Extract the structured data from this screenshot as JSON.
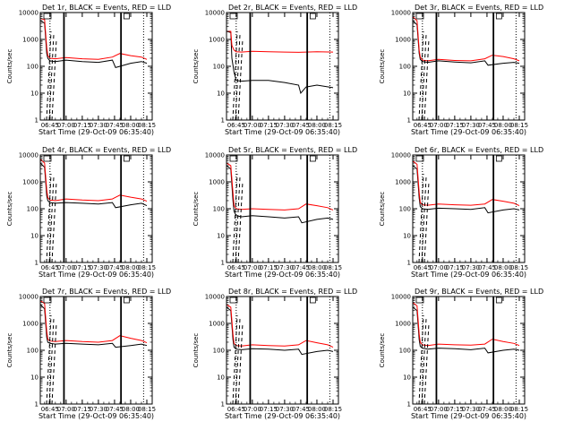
{
  "figure": {
    "xlabel": "Start Time (29-Oct-09 06:35:40)",
    "ylabel": "Counts/sec",
    "x_ticks": [
      "06:45",
      "07:00",
      "07:15",
      "07:30",
      "07:45",
      "08:00",
      "08:15"
    ],
    "y_ticks": [
      "1",
      "10",
      "100",
      "1000",
      "10000"
    ],
    "colors": {
      "events": "#000000",
      "lld": "#ff0000"
    }
  },
  "chart_data": [
    {
      "type": "line",
      "title": "Det 1r, BLACK = Events, RED = LLD",
      "y_scale": "log",
      "ylim": [
        1,
        10000
      ],
      "x_ticks": [
        "06:45",
        "07:00",
        "07:15",
        "07:30",
        "07:45",
        "08:00",
        "08:15"
      ],
      "series": [
        {
          "color": "#000000",
          "x": [
            "06:36",
            "06:40",
            "06:42",
            "06:43",
            "06:45",
            "06:50",
            "07:00",
            "07:15",
            "07:30",
            "07:43",
            "07:46",
            "08:00",
            "08:10",
            "08:15"
          ],
          "y": [
            5000,
            4000,
            300,
            200,
            160,
            150,
            170,
            150,
            140,
            170,
            90,
            130,
            150,
            130
          ]
        },
        {
          "color": "#ff0000",
          "x": [
            "06:36",
            "06:40",
            "06:42",
            "06:43",
            "06:45",
            "06:50",
            "07:00",
            "07:15",
            "07:30",
            "07:43",
            "07:50",
            "08:00",
            "08:10",
            "08:15"
          ],
          "y": [
            6000,
            5500,
            500,
            250,
            200,
            190,
            210,
            190,
            180,
            220,
            300,
            250,
            220,
            180
          ]
        }
      ]
    },
    {
      "type": "line",
      "title": "Det 2r, BLACK = Events, RED = LLD",
      "y_scale": "log",
      "ylim": [
        1,
        10000
      ],
      "x_ticks": [
        "06:45",
        "07:00",
        "07:15",
        "07:30",
        "07:45",
        "08:00",
        "08:15"
      ],
      "series": [
        {
          "color": "#000000",
          "x": [
            "06:36",
            "06:40",
            "06:41",
            "06:43",
            "06:45",
            "06:50",
            "07:00",
            "07:15",
            "07:30",
            "07:43",
            "07:45",
            "07:50",
            "08:00",
            "08:15"
          ],
          "y": [
            2000,
            1800,
            200,
            60,
            30,
            28,
            30,
            30,
            25,
            20,
            10,
            17,
            20,
            16
          ]
        },
        {
          "color": "#ff0000",
          "x": [
            "06:36",
            "06:40",
            "06:41",
            "06:43",
            "06:45",
            "06:50",
            "07:00",
            "07:15",
            "07:30",
            "07:43",
            "07:50",
            "08:00",
            "08:15"
          ],
          "y": [
            2000,
            2000,
            600,
            400,
            350,
            340,
            360,
            350,
            340,
            330,
            340,
            350,
            340
          ]
        }
      ]
    },
    {
      "type": "line",
      "title": "Det 3r, BLACK = Events, RED = LLD",
      "y_scale": "log",
      "ylim": [
        1,
        10000
      ],
      "x_ticks": [
        "06:45",
        "07:00",
        "07:15",
        "07:30",
        "07:45",
        "08:00",
        "08:15"
      ],
      "series": [
        {
          "color": "#000000",
          "x": [
            "06:36",
            "06:40",
            "06:42",
            "06:43",
            "06:45",
            "06:50",
            "07:00",
            "07:15",
            "07:30",
            "07:43",
            "07:46",
            "08:00",
            "08:10",
            "08:15"
          ],
          "y": [
            5000,
            3500,
            300,
            180,
            150,
            140,
            160,
            145,
            135,
            160,
            110,
            130,
            140,
            130
          ]
        },
        {
          "color": "#ff0000",
          "x": [
            "06:36",
            "06:40",
            "06:42",
            "06:43",
            "06:45",
            "06:50",
            "07:00",
            "07:15",
            "07:30",
            "07:43",
            "07:50",
            "08:00",
            "08:10",
            "08:15"
          ],
          "y": [
            7000,
            5000,
            400,
            220,
            170,
            160,
            180,
            165,
            160,
            190,
            260,
            230,
            190,
            160
          ]
        }
      ]
    },
    {
      "type": "line",
      "title": "Det 4r, BLACK = Events, RED = LLD",
      "y_scale": "log",
      "ylim": [
        1,
        10000
      ],
      "x_ticks": [
        "06:45",
        "07:00",
        "07:15",
        "07:30",
        "07:45",
        "08:00",
        "08:15"
      ],
      "series": [
        {
          "color": "#000000",
          "x": [
            "06:36",
            "06:40",
            "06:42",
            "06:43",
            "06:45",
            "06:50",
            "07:00",
            "07:15",
            "07:30",
            "07:43",
            "07:46",
            "08:00",
            "08:10",
            "08:15"
          ],
          "y": [
            5000,
            3500,
            300,
            200,
            170,
            160,
            170,
            160,
            150,
            170,
            110,
            140,
            160,
            130
          ]
        },
        {
          "color": "#ff0000",
          "x": [
            "06:36",
            "06:40",
            "06:42",
            "06:43",
            "06:45",
            "06:50",
            "07:00",
            "07:15",
            "07:30",
            "07:43",
            "07:50",
            "08:00",
            "08:10",
            "08:15"
          ],
          "y": [
            7000,
            5000,
            500,
            260,
            210,
            200,
            230,
            210,
            200,
            230,
            320,
            270,
            230,
            190
          ]
        }
      ]
    },
    {
      "type": "line",
      "title": "Det 5r, BLACK = Events, RED = LLD",
      "y_scale": "log",
      "ylim": [
        1,
        10000
      ],
      "x_ticks": [
        "06:45",
        "07:00",
        "07:15",
        "07:30",
        "07:45",
        "08:00",
        "08:15"
      ],
      "series": [
        {
          "color": "#000000",
          "x": [
            "06:36",
            "06:40",
            "06:42",
            "06:43",
            "06:45",
            "06:50",
            "07:00",
            "07:15",
            "07:30",
            "07:43",
            "07:46",
            "08:00",
            "08:10",
            "08:15"
          ],
          "y": [
            4000,
            3000,
            200,
            80,
            55,
            50,
            55,
            50,
            45,
            50,
            30,
            40,
            45,
            40
          ]
        },
        {
          "color": "#ff0000",
          "x": [
            "06:36",
            "06:40",
            "06:42",
            "06:43",
            "06:45",
            "06:50",
            "07:00",
            "07:15",
            "07:30",
            "07:43",
            "07:50",
            "08:00",
            "08:10",
            "08:15"
          ],
          "y": [
            5000,
            4000,
            400,
            130,
            100,
            95,
            100,
            95,
            90,
            100,
            150,
            130,
            110,
            90
          ]
        }
      ]
    },
    {
      "type": "line",
      "title": "Det 6r, BLACK = Events, RED = LLD",
      "y_scale": "log",
      "ylim": [
        1,
        10000
      ],
      "x_ticks": [
        "06:45",
        "07:00",
        "07:15",
        "07:30",
        "07:45",
        "08:00",
        "08:15"
      ],
      "series": [
        {
          "color": "#000000",
          "x": [
            "06:36",
            "06:40",
            "06:42",
            "06:43",
            "06:45",
            "06:50",
            "07:00",
            "07:15",
            "07:30",
            "07:43",
            "07:46",
            "08:00",
            "08:10",
            "08:15"
          ],
          "y": [
            4000,
            3000,
            250,
            120,
            100,
            95,
            105,
            100,
            95,
            110,
            70,
            90,
            100,
            90
          ]
        },
        {
          "color": "#ff0000",
          "x": [
            "06:36",
            "06:40",
            "06:42",
            "06:43",
            "06:45",
            "06:50",
            "07:00",
            "07:15",
            "07:30",
            "07:43",
            "07:50",
            "08:00",
            "08:10",
            "08:15"
          ],
          "y": [
            6000,
            4500,
            400,
            170,
            140,
            135,
            150,
            140,
            135,
            150,
            220,
            190,
            160,
            130
          ]
        }
      ]
    },
    {
      "type": "line",
      "title": "Det 7r, BLACK = Events, RED = LLD",
      "y_scale": "log",
      "ylim": [
        1,
        10000
      ],
      "x_ticks": [
        "06:45",
        "07:00",
        "07:15",
        "07:30",
        "07:45",
        "08:00",
        "08:15"
      ],
      "series": [
        {
          "color": "#000000",
          "x": [
            "06:36",
            "06:40",
            "06:42",
            "06:43",
            "06:45",
            "06:50",
            "07:00",
            "07:15",
            "07:30",
            "07:43",
            "07:46",
            "08:00",
            "08:10",
            "08:15"
          ],
          "y": [
            5000,
            3500,
            300,
            200,
            180,
            170,
            180,
            170,
            160,
            180,
            130,
            150,
            170,
            150
          ]
        },
        {
          "color": "#ff0000",
          "x": [
            "06:36",
            "06:40",
            "06:42",
            "06:43",
            "06:45",
            "06:50",
            "07:00",
            "07:15",
            "07:30",
            "07:43",
            "07:50",
            "08:00",
            "08:10",
            "08:15"
          ],
          "y": [
            7000,
            5500,
            500,
            260,
            220,
            210,
            230,
            210,
            200,
            230,
            350,
            280,
            230,
            190
          ]
        }
      ]
    },
    {
      "type": "line",
      "title": "Det 8r, BLACK = Events, RED = LLD",
      "y_scale": "log",
      "ylim": [
        1,
        10000
      ],
      "x_ticks": [
        "06:45",
        "07:00",
        "07:15",
        "07:30",
        "07:45",
        "08:00",
        "08:15"
      ],
      "series": [
        {
          "color": "#000000",
          "x": [
            "06:36",
            "06:40",
            "06:42",
            "06:43",
            "06:45",
            "06:50",
            "07:00",
            "07:15",
            "07:30",
            "07:43",
            "07:46",
            "08:00",
            "08:10",
            "08:15"
          ],
          "y": [
            4000,
            3000,
            250,
            130,
            110,
            105,
            115,
            110,
            100,
            110,
            70,
            90,
            100,
            90
          ]
        },
        {
          "color": "#ff0000",
          "x": [
            "06:36",
            "06:40",
            "06:42",
            "06:43",
            "06:45",
            "06:50",
            "07:00",
            "07:15",
            "07:30",
            "07:43",
            "07:50",
            "08:00",
            "08:10",
            "08:15"
          ],
          "y": [
            5000,
            4000,
            400,
            180,
            150,
            145,
            160,
            150,
            145,
            160,
            230,
            190,
            160,
            130
          ]
        }
      ]
    },
    {
      "type": "line",
      "title": "Det 9r, BLACK = Events, RED = LLD",
      "y_scale": "log",
      "ylim": [
        1,
        10000
      ],
      "x_ticks": [
        "06:45",
        "07:00",
        "07:15",
        "07:30",
        "07:45",
        "08:00",
        "08:15"
      ],
      "series": [
        {
          "color": "#000000",
          "x": [
            "06:36",
            "06:40",
            "06:42",
            "06:43",
            "06:45",
            "06:50",
            "07:00",
            "07:15",
            "07:30",
            "07:43",
            "07:46",
            "08:00",
            "08:10",
            "08:15"
          ],
          "y": [
            4000,
            3000,
            250,
            140,
            120,
            110,
            120,
            115,
            105,
            120,
            80,
            100,
            110,
            100
          ]
        },
        {
          "color": "#ff0000",
          "x": [
            "06:36",
            "06:40",
            "06:42",
            "06:43",
            "06:45",
            "06:50",
            "07:00",
            "07:15",
            "07:30",
            "07:43",
            "07:50",
            "08:00",
            "08:10",
            "08:15"
          ],
          "y": [
            6000,
            4500,
            400,
            200,
            160,
            150,
            170,
            160,
            155,
            170,
            260,
            210,
            180,
            150
          ]
        }
      ]
    }
  ]
}
